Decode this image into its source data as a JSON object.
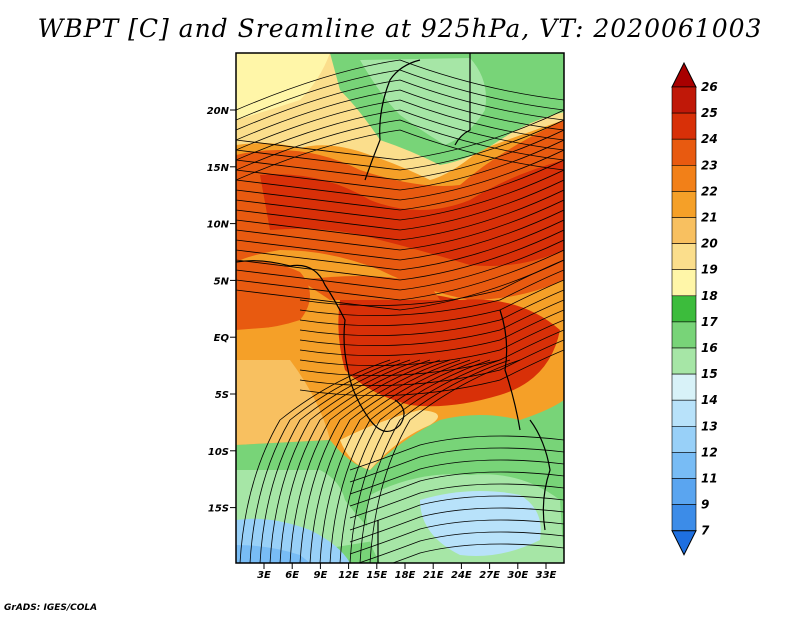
{
  "title": "WBPT [C] and Sreamline at 925hPa, VT: 2020061003",
  "credit": "GrADS: IGES/COLA",
  "map": {
    "lat_ticks": [
      "20N",
      "15N",
      "10N",
      "5N",
      "EQ",
      "5S",
      "10S",
      "15S"
    ],
    "lon_ticks": [
      "3E",
      "6E",
      "9E",
      "12E",
      "15E",
      "18E",
      "21E",
      "24E",
      "27E",
      "30E",
      "33E"
    ]
  },
  "colorbar": {
    "levels": [
      "7",
      "9",
      "11",
      "12",
      "13",
      "14",
      "15",
      "16",
      "17",
      "18",
      "19",
      "20",
      "21",
      "22",
      "23",
      "24",
      "25",
      "26"
    ],
    "colors": [
      "#1e6fe0",
      "#3c8ce8",
      "#5aa5f0",
      "#78bcf5",
      "#98d0f8",
      "#b8e2fa",
      "#d8f2f8",
      "#a6e6a6",
      "#78d478",
      "#3cbc3c",
      "#fff6a8",
      "#fbde8c",
      "#f8c060",
      "#f5a028",
      "#f28018",
      "#e85a10",
      "#d83008",
      "#c01808",
      "#a80000"
    ]
  }
}
